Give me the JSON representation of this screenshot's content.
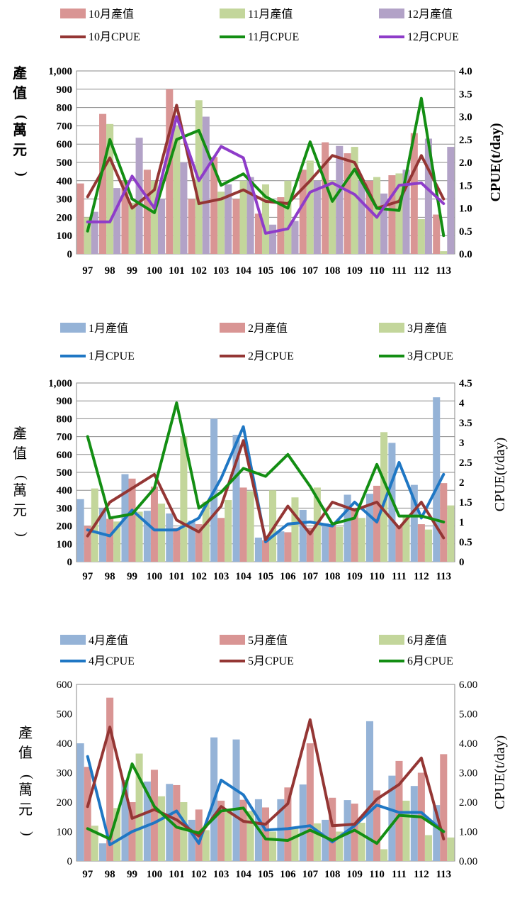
{
  "chart_data": [
    {
      "type": "bar",
      "categories": [
        "97",
        "98",
        "99",
        "100",
        "101",
        "102",
        "103",
        "104",
        "105",
        "106",
        "107",
        "108",
        "109",
        "110",
        "111",
        "112",
        "113"
      ],
      "series": [
        {
          "name": "10月產值",
          "kind": "bar",
          "axis": "left",
          "color": "#D99594",
          "values": [
            385,
            765,
            400,
            460,
            900,
            300,
            530,
            300,
            220,
            310,
            460,
            610,
            550,
            400,
            430,
            660,
            215
          ]
        },
        {
          "name": "11月產值",
          "kind": "bar",
          "axis": "left",
          "color": "#C3D69B",
          "values": [
            200,
            710,
            280,
            400,
            700,
            840,
            340,
            400,
            380,
            400,
            510,
            400,
            585,
            420,
            440,
            190,
            15
          ]
        },
        {
          "name": "12月產值",
          "kind": "bar",
          "axis": "left",
          "color": "#B2A2C7",
          "values": [
            230,
            360,
            635,
            300,
            500,
            750,
            380,
            420,
            160,
            180,
            400,
            590,
            400,
            330,
            460,
            630,
            585
          ]
        },
        {
          "name": "10月CPUE",
          "kind": "line",
          "axis": "right",
          "color": "#943634",
          "values": [
            1.25,
            2.1,
            1.0,
            1.4,
            3.25,
            1.1,
            1.2,
            1.4,
            1.15,
            1.1,
            1.6,
            2.15,
            2.0,
            1.0,
            1.15,
            2.15,
            1.2
          ]
        },
        {
          "name": "11月CPUE",
          "kind": "line",
          "axis": "right",
          "color": "#138E13",
          "values": [
            0.5,
            2.5,
            1.2,
            0.9,
            2.5,
            2.7,
            1.5,
            1.75,
            1.25,
            1.0,
            2.45,
            1.15,
            1.85,
            1.0,
            0.95,
            3.4,
            0.4
          ]
        },
        {
          "name": "12月CPUE",
          "kind": "line",
          "axis": "right",
          "color": "#8E3CC9",
          "values": [
            0.7,
            0.7,
            1.7,
            1.0,
            3.0,
            1.6,
            2.35,
            2.1,
            0.45,
            0.55,
            1.35,
            1.55,
            1.3,
            0.8,
            1.5,
            1.55,
            1.1
          ]
        }
      ],
      "ylabel": "產值(萬元)",
      "ylabel2": "CPUE(t/day)",
      "ylim": [
        0,
        1000
      ],
      "ylim2": [
        0,
        4.0
      ],
      "yticks": [
        "0",
        "100",
        "200",
        "300",
        "400",
        "500",
        "600",
        "700",
        "800",
        "900",
        "1,000"
      ],
      "yticks2": [
        "0.0",
        "0.5",
        "1.0",
        "1.5",
        "2.0",
        "2.5",
        "3.0",
        "3.5",
        "4.0"
      ],
      "grid": true,
      "legend": "top"
    },
    {
      "type": "bar",
      "categories": [
        "97",
        "98",
        "99",
        "100",
        "101",
        "102",
        "103",
        "104",
        "105",
        "106",
        "107",
        "108",
        "109",
        "110",
        "111",
        "112",
        "113"
      ],
      "series": [
        {
          "name": "1月產值",
          "kind": "bar",
          "axis": "left",
          "color": "#95B3D7",
          "values": [
            350,
            300,
            490,
            285,
            270,
            230,
            800,
            710,
            135,
            170,
            290,
            215,
            375,
            380,
            665,
            430,
            920
          ]
        },
        {
          "name": "2月產值",
          "kind": "bar",
          "axis": "left",
          "color": "#D99594",
          "values": [
            200,
            240,
            465,
            420,
            190,
            210,
            245,
            415,
            120,
            165,
            190,
            210,
            300,
            425,
            200,
            210,
            440
          ]
        },
        {
          "name": "3月產值",
          "kind": "bar",
          "axis": "left",
          "color": "#C3D69B",
          "values": [
            410,
            225,
            280,
            325,
            700,
            335,
            345,
            395,
            400,
            360,
            415,
            195,
            245,
            725,
            250,
            180,
            315
          ]
        },
        {
          "name": "1月CPUE",
          "kind": "line",
          "axis": "right",
          "color": "#1F77C4",
          "values": [
            0.8,
            0.65,
            1.3,
            0.8,
            0.8,
            1.1,
            2.1,
            3.4,
            0.5,
            0.95,
            1.0,
            0.9,
            1.5,
            1.0,
            2.5,
            1.1,
            2.2
          ]
        },
        {
          "name": "2月CPUE",
          "kind": "line",
          "axis": "right",
          "color": "#943634",
          "values": [
            0.65,
            1.5,
            1.85,
            2.2,
            1.05,
            0.75,
            1.4,
            3.05,
            0.55,
            1.4,
            0.7,
            1.5,
            1.3,
            1.5,
            0.85,
            1.5,
            0.6
          ]
        },
        {
          "name": "3月CPUE",
          "kind": "line",
          "axis": "right",
          "color": "#138E13",
          "values": [
            3.15,
            1.1,
            1.2,
            1.85,
            4.0,
            1.35,
            1.75,
            2.35,
            2.15,
            2.7,
            1.9,
            0.95,
            1.1,
            2.45,
            1.15,
            1.15,
            1.0
          ]
        }
      ],
      "ylabel": "產值(萬元)",
      "ylabel2": "CPUE(t/day)",
      "ylim": [
        0,
        1000
      ],
      "ylim2": [
        0,
        4.5
      ],
      "yticks": [
        "0",
        "100",
        "200",
        "300",
        "400",
        "500",
        "600",
        "700",
        "800",
        "900",
        "1,000"
      ],
      "yticks2": [
        "0",
        "0.5",
        "1",
        "1.5",
        "2",
        "2.5",
        "3",
        "3.5",
        "4",
        "4.5"
      ],
      "grid": true,
      "legend": "top"
    },
    {
      "type": "bar",
      "categories": [
        "97",
        "98",
        "99",
        "100",
        "101",
        "102",
        "103",
        "104",
        "105",
        "106",
        "107",
        "108",
        "109",
        "110",
        "111",
        "112",
        "113"
      ],
      "series": [
        {
          "name": "4月產值",
          "kind": "bar",
          "axis": "left",
          "color": "#95B3D7",
          "values": [
            400,
            60,
            275,
            270,
            262,
            140,
            420,
            413,
            210,
            210,
            260,
            140,
            207,
            475,
            290,
            255,
            190
          ]
        },
        {
          "name": "5月產值",
          "kind": "bar",
          "axis": "left",
          "color": "#D99594",
          "values": [
            320,
            555,
            200,
            310,
            258,
            175,
            205,
            208,
            182,
            250,
            400,
            215,
            195,
            240,
            340,
            300,
            363
          ]
        },
        {
          "name": "6月產值",
          "kind": "bar",
          "axis": "left",
          "color": "#C3D69B",
          "values": [
            120,
            180,
            365,
            220,
            200,
            105,
            175,
            170,
            100,
            110,
            128,
            100,
            130,
            40,
            205,
            88,
            80
          ]
        },
        {
          "name": "4月CPUE",
          "kind": "line",
          "axis": "right",
          "color": "#1F77C4",
          "values": [
            3.55,
            0.55,
            1.0,
            1.3,
            1.7,
            0.6,
            2.75,
            2.25,
            1.05,
            1.1,
            1.2,
            0.65,
            1.2,
            1.9,
            1.65,
            1.65,
            1.0
          ]
        },
        {
          "name": "5月CPUE",
          "kind": "line",
          "axis": "right",
          "color": "#943634",
          "values": [
            1.85,
            4.55,
            1.45,
            1.75,
            1.4,
            0.85,
            1.85,
            1.35,
            1.25,
            1.95,
            4.8,
            1.2,
            1.25,
            2.1,
            2.6,
            3.5,
            0.75
          ]
        },
        {
          "name": "6月CPUE",
          "kind": "line",
          "axis": "right",
          "color": "#138E13",
          "values": [
            1.1,
            0.75,
            3.3,
            1.85,
            1.15,
            0.95,
            1.7,
            1.8,
            0.75,
            0.7,
            1.05,
            0.7,
            1.05,
            0.6,
            1.55,
            1.5,
            1.0
          ]
        }
      ],
      "ylabel": "產值(萬元)",
      "ylabel2": "CPUE(t/day)",
      "ylim": [
        0,
        600
      ],
      "ylim2": [
        0,
        6.0
      ],
      "yticks": [
        "0",
        "100",
        "200",
        "300",
        "400",
        "500",
        "600"
      ],
      "yticks2": [
        "0.00",
        "1.00",
        "2.00",
        "3.00",
        "4.00",
        "5.00",
        "6.00"
      ],
      "grid": false,
      "legend": "top"
    }
  ]
}
